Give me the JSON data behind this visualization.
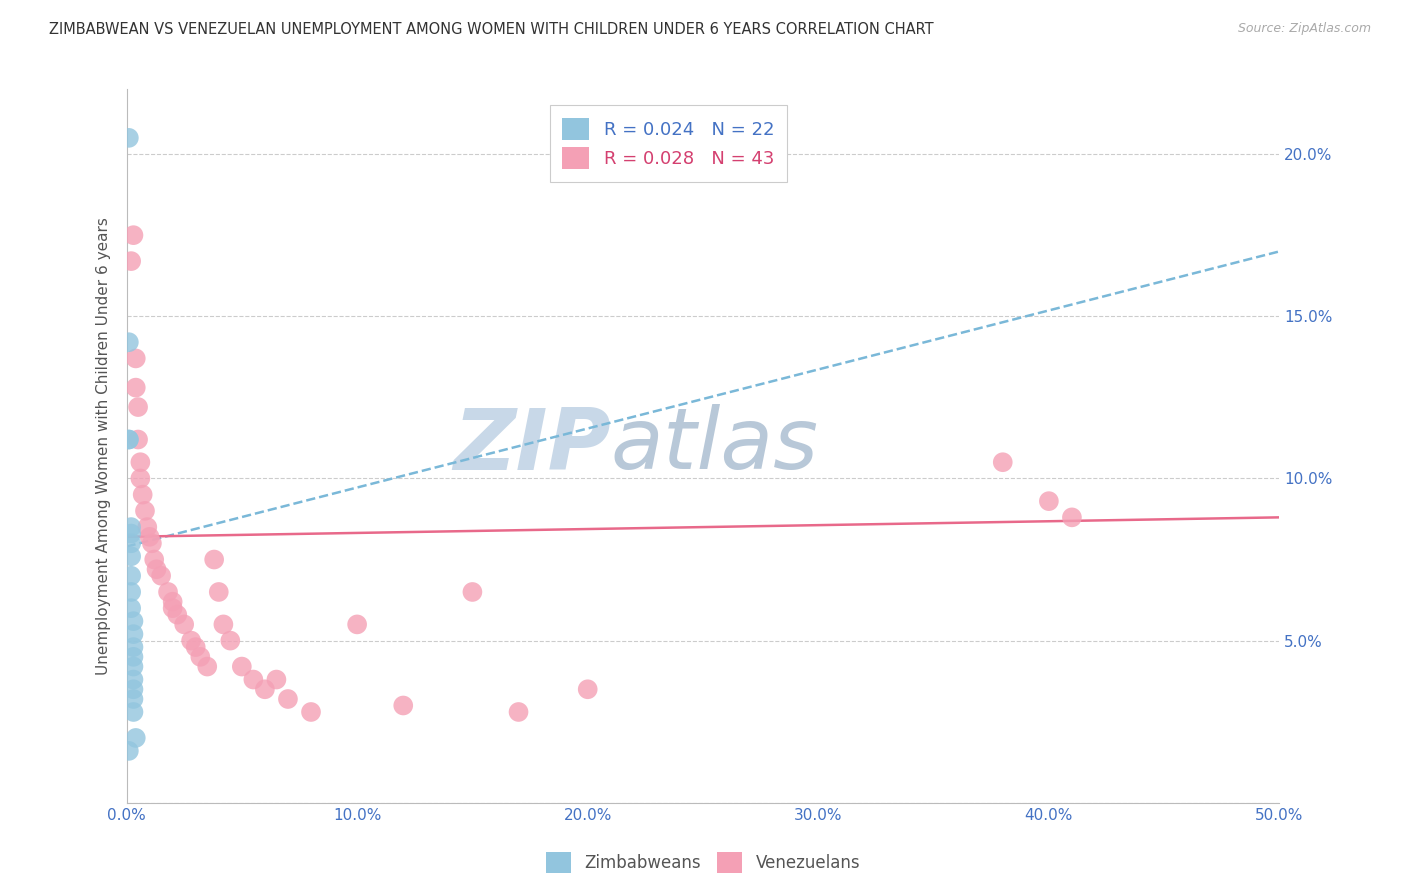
{
  "title": "ZIMBABWEAN VS VENEZUELAN UNEMPLOYMENT AMONG WOMEN WITH CHILDREN UNDER 6 YEARS CORRELATION CHART",
  "source": "Source: ZipAtlas.com",
  "ylabel": "Unemployment Among Women with Children Under 6 years",
  "xlim": [
    0,
    0.5
  ],
  "ylim": [
    0,
    0.22
  ],
  "xticks": [
    0.0,
    0.1,
    0.2,
    0.3,
    0.4,
    0.5
  ],
  "yticks": [
    0.0,
    0.05,
    0.1,
    0.15,
    0.2
  ],
  "xticklabels": [
    "0.0%",
    "10.0%",
    "20.0%",
    "30.0%",
    "40.0%",
    "50.0%"
  ],
  "right_yticklabels": [
    "",
    "5.0%",
    "10.0%",
    "15.0%",
    "20.0%"
  ],
  "legend1_label": "R = 0.024   N = 22",
  "legend2_label": "R = 0.028   N = 43",
  "color_zim": "#92C5DE",
  "color_ven": "#F4A0B5",
  "color_zim_line": "#7AB8D8",
  "color_ven_line": "#E8698A",
  "watermark_zip": "ZIP",
  "watermark_atlas": "atlas",
  "zim_x": [
    0.001,
    0.001,
    0.001,
    0.001,
    0.002,
    0.002,
    0.002,
    0.002,
    0.002,
    0.002,
    0.002,
    0.003,
    0.003,
    0.003,
    0.003,
    0.003,
    0.003,
    0.003,
    0.003,
    0.003,
    0.004,
    0.001
  ],
  "zim_y": [
    0.205,
    0.142,
    0.112,
    0.112,
    0.085,
    0.083,
    0.08,
    0.076,
    0.07,
    0.065,
    0.06,
    0.056,
    0.052,
    0.048,
    0.045,
    0.042,
    0.038,
    0.035,
    0.032,
    0.028,
    0.02,
    0.016
  ],
  "ven_x": [
    0.002,
    0.003,
    0.004,
    0.004,
    0.005,
    0.006,
    0.006,
    0.007,
    0.008,
    0.009,
    0.01,
    0.011,
    0.012,
    0.013,
    0.015,
    0.018,
    0.02,
    0.02,
    0.022,
    0.025,
    0.028,
    0.03,
    0.032,
    0.035,
    0.038,
    0.04,
    0.042,
    0.045,
    0.05,
    0.055,
    0.06,
    0.065,
    0.07,
    0.08,
    0.1,
    0.12,
    0.15,
    0.17,
    0.2,
    0.38,
    0.4,
    0.41,
    0.005
  ],
  "ven_y": [
    0.167,
    0.175,
    0.137,
    0.128,
    0.122,
    0.105,
    0.1,
    0.095,
    0.09,
    0.085,
    0.082,
    0.08,
    0.075,
    0.072,
    0.07,
    0.065,
    0.062,
    0.06,
    0.058,
    0.055,
    0.05,
    0.048,
    0.045,
    0.042,
    0.075,
    0.065,
    0.055,
    0.05,
    0.042,
    0.038,
    0.035,
    0.038,
    0.032,
    0.028,
    0.055,
    0.03,
    0.065,
    0.028,
    0.035,
    0.105,
    0.093,
    0.088,
    0.112
  ],
  "zim_trend_x": [
    0.0,
    0.5
  ],
  "zim_trend_y": [
    0.079,
    0.17
  ],
  "ven_trend_x": [
    0.0,
    0.5
  ],
  "ven_trend_y": [
    0.082,
    0.088
  ]
}
